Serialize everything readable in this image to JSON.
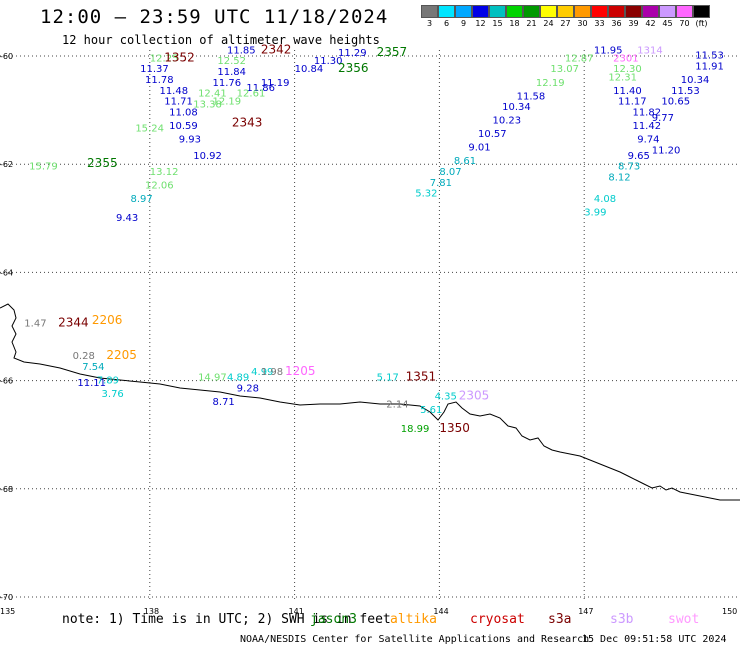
{
  "title": "12:00 — 23:59 UTC 11/18/2024",
  "subtitle": "12 hour collection of altimeter wave heights",
  "colorbar": {
    "colors": [
      "#777777",
      "#00e5ff",
      "#00a8ff",
      "#0000e6",
      "#00c0c0",
      "#00d400",
      "#009900",
      "#ffff00",
      "#ffcc00",
      "#ff9900",
      "#ff0000",
      "#cc0000",
      "#8a0000",
      "#aa00aa",
      "#cc99ff",
      "#ff66ff",
      "#000000"
    ],
    "labels": [
      "3",
      "6",
      "9",
      "12",
      "15",
      "18",
      "21",
      "24",
      "27",
      "30",
      "33",
      "36",
      "39",
      "42",
      "45",
      "70",
      "(ft)"
    ]
  },
  "axes": {
    "y_labels": [
      "-60",
      "-62",
      "-64",
      "-66",
      "-68",
      "-70"
    ],
    "x_labels": [
      "135",
      "138",
      "141",
      "144",
      "147",
      "150"
    ]
  },
  "annotations": [
    {
      "t": "12.25",
      "c": "#6fe06f",
      "lon": 138.0,
      "lat": -60.1
    },
    {
      "t": "1352",
      "c": "#7a0000",
      "lon": 138.3,
      "lat": -60.1,
      "big": true
    },
    {
      "t": "11.85",
      "c": "#0000cc",
      "lon": 139.6,
      "lat": -59.95
    },
    {
      "t": "2342",
      "c": "#7a0000",
      "lon": 140.3,
      "lat": -59.95,
      "big": true
    },
    {
      "t": "12.52",
      "c": "#6fe06f",
      "lon": 139.4,
      "lat": -60.15
    },
    {
      "t": "11.29",
      "c": "#0000cc",
      "lon": 141.9,
      "lat": -60.0
    },
    {
      "t": "2357",
      "c": "#007700",
      "lon": 142.7,
      "lat": -60.0,
      "big": true
    },
    {
      "t": "11.37",
      "c": "#0000cc",
      "lon": 137.8,
      "lat": -60.3
    },
    {
      "t": "11.84",
      "c": "#0000cc",
      "lon": 139.4,
      "lat": -60.35
    },
    {
      "t": "11.30",
      "c": "#0000cc",
      "lon": 141.4,
      "lat": -60.15
    },
    {
      "t": "10.84",
      "c": "#0000cc",
      "lon": 141.0,
      "lat": -60.3
    },
    {
      "t": "2356",
      "c": "#007700",
      "lon": 141.9,
      "lat": -60.3,
      "big": true
    },
    {
      "t": "11.78",
      "c": "#0000cc",
      "lon": 137.9,
      "lat": -60.5
    },
    {
      "t": "11.76",
      "c": "#0000cc",
      "lon": 139.3,
      "lat": -60.55
    },
    {
      "t": "11.19",
      "c": "#0000cc",
      "lon": 140.3,
      "lat": -60.55
    },
    {
      "t": "11.48",
      "c": "#0000cc",
      "lon": 138.2,
      "lat": -60.7
    },
    {
      "t": "11.86",
      "c": "#0000cc",
      "lon": 140.0,
      "lat": -60.65
    },
    {
      "t": "12.61",
      "c": "#6fe06f",
      "lon": 139.8,
      "lat": -60.75
    },
    {
      "t": "12.41",
      "c": "#6fe06f",
      "lon": 139.0,
      "lat": -60.75
    },
    {
      "t": "11.71",
      "c": "#0000cc",
      "lon": 138.3,
      "lat": -60.9
    },
    {
      "t": "13.38",
      "c": "#6fe06f",
      "lon": 138.9,
      "lat": -60.95
    },
    {
      "t": "12.19",
      "c": "#6fe06f",
      "lon": 139.3,
      "lat": -60.9
    },
    {
      "t": "11.08",
      "c": "#0000cc",
      "lon": 138.4,
      "lat": -61.1
    },
    {
      "t": "2343",
      "c": "#7a0000",
      "lon": 139.7,
      "lat": -61.3,
      "big": true
    },
    {
      "t": "15.24",
      "c": "#6fe06f",
      "lon": 137.7,
      "lat": -61.4
    },
    {
      "t": "10.59",
      "c": "#0000cc",
      "lon": 138.4,
      "lat": -61.35
    },
    {
      "t": "9.93",
      "c": "#0000cc",
      "lon": 138.6,
      "lat": -61.6
    },
    {
      "t": "10.92",
      "c": "#0000cc",
      "lon": 138.9,
      "lat": -61.9
    },
    {
      "t": "15.79",
      "c": "#6fe06f",
      "lon": 135.5,
      "lat": -62.1
    },
    {
      "t": "2355",
      "c": "#007700",
      "lon": 136.7,
      "lat": -62.05,
      "big": true
    },
    {
      "t": "13.12",
      "c": "#6fe06f",
      "lon": 138.0,
      "lat": -62.2
    },
    {
      "t": "12.06",
      "c": "#6fe06f",
      "lon": 137.9,
      "lat": -62.45
    },
    {
      "t": "8.97",
      "c": "#00aabb",
      "lon": 137.6,
      "lat": -62.7
    },
    {
      "t": "9.43",
      "c": "#0000cc",
      "lon": 137.3,
      "lat": -63.05
    },
    {
      "t": "11.95",
      "c": "#0000cc",
      "lon": 147.2,
      "lat": -59.95
    },
    {
      "t": "12.87",
      "c": "#6fe06f",
      "lon": 146.6,
      "lat": -60.1
    },
    {
      "t": "2301",
      "c": "#ff66ff",
      "lon": 147.6,
      "lat": -60.1
    },
    {
      "t": "1314",
      "c": "#cc99ff",
      "lon": 148.1,
      "lat": -59.95
    },
    {
      "t": "11.53",
      "c": "#0000cc",
      "lon": 149.3,
      "lat": -60.05
    },
    {
      "t": "13.07",
      "c": "#6fe06f",
      "lon": 146.3,
      "lat": -60.3
    },
    {
      "t": "12.30",
      "c": "#6fe06f",
      "lon": 147.6,
      "lat": -60.3
    },
    {
      "t": "11.91",
      "c": "#0000cc",
      "lon": 149.3,
      "lat": -60.25
    },
    {
      "t": "12.31",
      "c": "#6fe06f",
      "lon": 147.5,
      "lat": -60.45
    },
    {
      "t": "10.34",
      "c": "#0000cc",
      "lon": 149.0,
      "lat": -60.5
    },
    {
      "t": "12.19",
      "c": "#6fe06f",
      "lon": 146.0,
      "lat": -60.55
    },
    {
      "t": "11.40",
      "c": "#0000cc",
      "lon": 147.6,
      "lat": -60.7
    },
    {
      "t": "11.53",
      "c": "#0000cc",
      "lon": 148.8,
      "lat": -60.7
    },
    {
      "t": "11.58",
      "c": "#0000cc",
      "lon": 145.6,
      "lat": -60.8
    },
    {
      "t": "11.17",
      "c": "#0000cc",
      "lon": 147.7,
      "lat": -60.9
    },
    {
      "t": "10.65",
      "c": "#0000cc",
      "lon": 148.6,
      "lat": -60.9
    },
    {
      "t": "10.34",
      "c": "#0000cc",
      "lon": 145.3,
      "lat": -61.0
    },
    {
      "t": "11.82",
      "c": "#0000cc",
      "lon": 148.0,
      "lat": -61.1
    },
    {
      "t": "9.77",
      "c": "#0000cc",
      "lon": 148.4,
      "lat": -61.2
    },
    {
      "t": "10.23",
      "c": "#0000cc",
      "lon": 145.1,
      "lat": -61.25
    },
    {
      "t": "11.42",
      "c": "#0000cc",
      "lon": 148.0,
      "lat": -61.35
    },
    {
      "t": "10.57",
      "c": "#0000cc",
      "lon": 144.8,
      "lat": -61.5
    },
    {
      "t": "9.74",
      "c": "#0000cc",
      "lon": 148.1,
      "lat": -61.6
    },
    {
      "t": "11.20",
      "c": "#0000cc",
      "lon": 148.4,
      "lat": -61.8
    },
    {
      "t": "9.01",
      "c": "#0000cc",
      "lon": 144.6,
      "lat": -61.75
    },
    {
      "t": "9.65",
      "c": "#0000cc",
      "lon": 147.9,
      "lat": -61.9
    },
    {
      "t": "8.61",
      "c": "#00aabb",
      "lon": 144.3,
      "lat": -62.0
    },
    {
      "t": "8.73",
      "c": "#00aabb",
      "lon": 147.7,
      "lat": -62.1
    },
    {
      "t": "8.07",
      "c": "#00aabb",
      "lon": 144.0,
      "lat": -62.2
    },
    {
      "t": "8.12",
      "c": "#00aabb",
      "lon": 147.5,
      "lat": -62.3
    },
    {
      "t": "7.81",
      "c": "#00aabb",
      "lon": 143.8,
      "lat": -62.4
    },
    {
      "t": "5.32",
      "c": "#00cccc",
      "lon": 143.5,
      "lat": -62.6
    },
    {
      "t": "4.08",
      "c": "#00cccc",
      "lon": 147.2,
      "lat": -62.7
    },
    {
      "t": "3.99",
      "c": "#00cccc",
      "lon": 147.0,
      "lat": -62.95
    },
    {
      "t": "1.47",
      "c": "#777777",
      "lon": 135.4,
      "lat": -65.0
    },
    {
      "t": "2344",
      "c": "#7a0000",
      "lon": 136.1,
      "lat": -65.0,
      "big": true
    },
    {
      "t": "2206",
      "c": "#ff9900",
      "lon": 136.8,
      "lat": -64.95,
      "big": true
    },
    {
      "t": "0.28",
      "c": "#777777",
      "lon": 136.4,
      "lat": -65.6
    },
    {
      "t": "2205",
      "c": "#ff9900",
      "lon": 137.1,
      "lat": -65.6,
      "big": true
    },
    {
      "t": "7.54",
      "c": "#00aabb",
      "lon": 136.6,
      "lat": -65.8
    },
    {
      "t": "11.11",
      "c": "#0000cc",
      "lon": 136.5,
      "lat": -66.1
    },
    {
      "t": "7.89",
      "c": "#00cccc",
      "lon": 136.9,
      "lat": -66.05
    },
    {
      "t": "3.76",
      "c": "#00cccc",
      "lon": 137.0,
      "lat": -66.3
    },
    {
      "t": "14.97",
      "c": "#6fe06f",
      "lon": 139.0,
      "lat": -66.0
    },
    {
      "t": "4.89",
      "c": "#00cccc",
      "lon": 139.6,
      "lat": -66.0
    },
    {
      "t": "4.99",
      "c": "#00cccc",
      "lon": 140.1,
      "lat": -65.9
    },
    {
      "t": "1.98",
      "c": "#777777",
      "lon": 140.3,
      "lat": -65.9
    },
    {
      "t": "1205",
      "c": "#ff66ff",
      "lon": 140.8,
      "lat": -65.9,
      "big": true
    },
    {
      "t": "9.28",
      "c": "#0000cc",
      "lon": 139.8,
      "lat": -66.2
    },
    {
      "t": "8.71",
      "c": "#0000cc",
      "lon": 139.3,
      "lat": -66.45
    },
    {
      "t": "5.17",
      "c": "#00cccc",
      "lon": 142.7,
      "lat": -66.0
    },
    {
      "t": "1351",
      "c": "#7a0000",
      "lon": 143.3,
      "lat": -66.0,
      "big": true
    },
    {
      "t": "2.14",
      "c": "#777777",
      "lon": 142.9,
      "lat": -66.5
    },
    {
      "t": "4.35",
      "c": "#00cccc",
      "lon": 143.9,
      "lat": -66.35
    },
    {
      "t": "2305",
      "c": "#cc99ff",
      "lon": 144.4,
      "lat": -66.35,
      "big": true
    },
    {
      "t": "5.61",
      "c": "#00cccc",
      "lon": 143.6,
      "lat": -66.6
    },
    {
      "t": "18.99",
      "c": "#00a000",
      "lon": 143.2,
      "lat": -66.95
    },
    {
      "t": "1350",
      "c": "#7a0000",
      "lon": 144.0,
      "lat": -66.95,
      "big": true
    }
  ],
  "footer": {
    "note": "note: 1) Time is in UTC; 2) SWH is in feet",
    "credit": "NOAA/NESDIS Center for Satellite Applications and Research",
    "timestamp": "15 Dec 09:51:58 UTC 2024"
  },
  "legend": [
    {
      "name": "jason3",
      "color": "#007700"
    },
    {
      "name": "altika",
      "color": "#ff9900"
    },
    {
      "name": "cryosat",
      "color": "#cc0000"
    },
    {
      "name": "s3a",
      "color": "#7a0000"
    },
    {
      "name": "s3b",
      "color": "#cc99ff"
    },
    {
      "name": "swot",
      "color": "#ff99ff"
    }
  ]
}
